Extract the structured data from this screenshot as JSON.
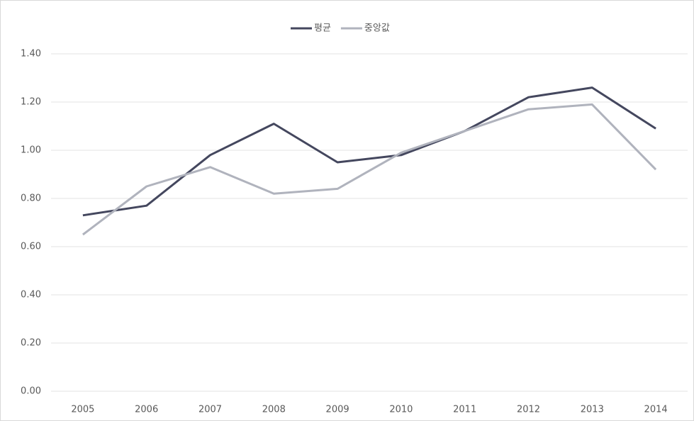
{
  "chart_data": {
    "type": "line",
    "categories": [
      "2005",
      "2006",
      "2007",
      "2008",
      "2009",
      "2010",
      "2011",
      "2012",
      "2013",
      "2014"
    ],
    "series": [
      {
        "name": "평균",
        "color": "#44475e",
        "values": [
          0.73,
          0.77,
          0.98,
          1.11,
          0.95,
          0.98,
          1.08,
          1.22,
          1.26,
          1.09
        ]
      },
      {
        "name": "중앙값",
        "color": "#b0b3bd",
        "values": [
          0.65,
          0.85,
          0.93,
          0.82,
          0.84,
          0.99,
          1.08,
          1.17,
          1.19,
          0.92
        ]
      }
    ],
    "ylim": [
      0,
      1.4
    ],
    "yticks": [
      {
        "value": 0,
        "label": "0.00"
      },
      {
        "value": 0.2,
        "label": "0.20"
      },
      {
        "value": 0.4,
        "label": "0.40"
      },
      {
        "value": 0.6,
        "label": "0.60"
      },
      {
        "value": 0.8,
        "label": "0.80"
      },
      {
        "value": 1.0,
        "label": "1.00"
      },
      {
        "value": 1.2,
        "label": "1.20"
      },
      {
        "value": 1.4,
        "label": "1.40"
      }
    ],
    "grid": true,
    "legend": "top"
  }
}
